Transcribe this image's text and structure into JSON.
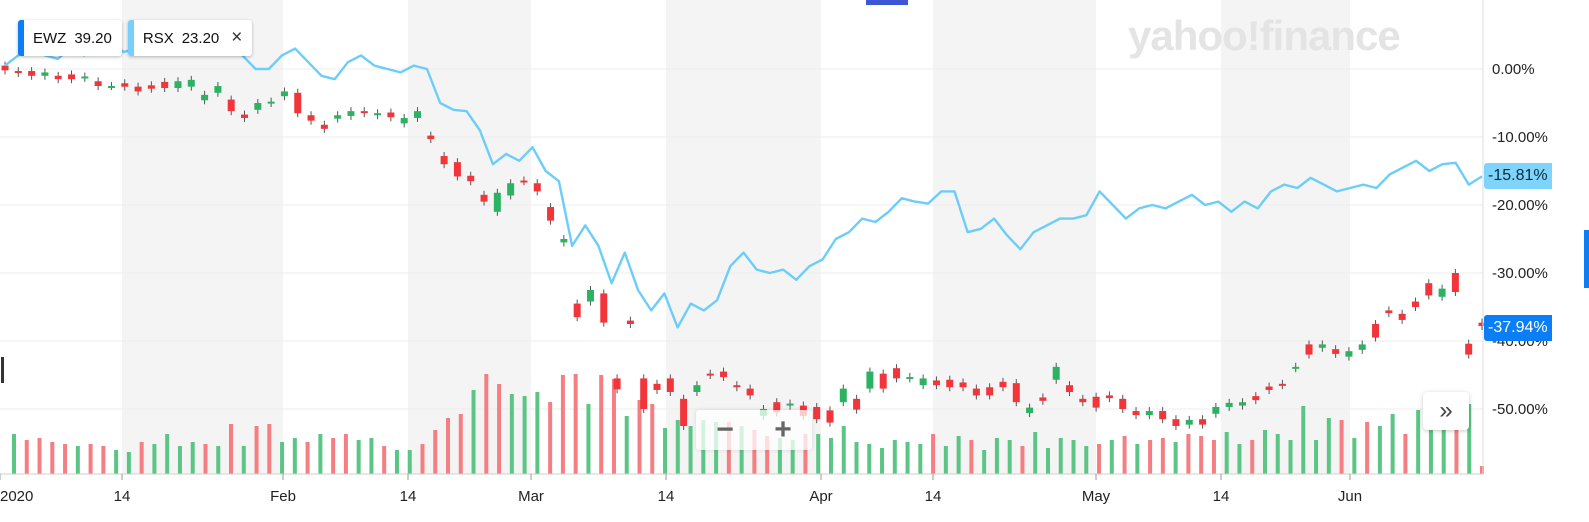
{
  "legend": [
    {
      "symbol": "EWZ",
      "value": "39.20",
      "color": "#0b7df5"
    },
    {
      "symbol": "RSX",
      "value": "23.20",
      "color": "#76d0fb",
      "close": "×"
    }
  ],
  "logo": "yahoo!finance",
  "badges": {
    "rsx": "-15.81%",
    "ewz": "-37.94%"
  },
  "zoom": {
    "minus": "−",
    "plus": "+"
  },
  "expand": "»",
  "chart_data": {
    "type": "candlestick+line",
    "x_ticks": [
      "2020",
      "14",
      "Feb",
      "14",
      "Mar",
      "14",
      "Apr",
      "14",
      "May",
      "14",
      "Jun"
    ],
    "y_ticks": [
      "0.00%",
      "-10.00%",
      "-20.00%",
      "-30.00%",
      "-40.00%",
      "-50.00%"
    ],
    "ylim": [
      -58,
      8
    ],
    "colors": {
      "up": "#2bb363",
      "down": "#f2353b",
      "volume_up": "#5ac584",
      "volume_down": "#f47e82",
      "rsx_line": "#6ccdf9"
    },
    "rsx_line": [
      0.5,
      2,
      3.5,
      2,
      1.5,
      3,
      2,
      3,
      4,
      2.5,
      3,
      4,
      5,
      3.5,
      4.5,
      3,
      5,
      3,
      2,
      0,
      0,
      2,
      3,
      1,
      -1,
      -1.5,
      1,
      2,
      0.5,
      0,
      -0.5,
      0.5,
      0,
      -5,
      -6,
      -6.2,
      -9,
      -14,
      -12.5,
      -13.5,
      -11.5,
      -15,
      -16.5,
      -26,
      -23,
      -26,
      -31.5,
      -27,
      -32.5,
      -35.5,
      -33,
      -38,
      -34.5,
      -35.5,
      -34,
      -29,
      -27,
      -29.5,
      -30,
      -29.5,
      -31,
      -29,
      -28,
      -25,
      -24,
      -22,
      -22.5,
      -21,
      -19,
      -19.5,
      -19.8,
      -18,
      -18,
      -24,
      -23.5,
      -22,
      -24.5,
      -26.5,
      -24,
      -23,
      -22,
      -22,
      -21.5,
      -18,
      -20,
      -22,
      -20.5,
      -20,
      -20.5,
      -19.5,
      -18.5,
      -20,
      -19.5,
      -21,
      -19.5,
      -20.5,
      -18,
      -17,
      -17.5,
      -16,
      -17,
      -18,
      -17.5,
      -17,
      -17.5,
      -15.5,
      -14.5,
      -13.5,
      -15,
      -14,
      -13.8,
      -17,
      -15.8
    ],
    "ewz_candles": [
      [
        0.5,
        -0.2
      ],
      [
        -0.3,
        -0.6
      ],
      [
        -0.3,
        -1
      ],
      [
        -1,
        -0.5
      ],
      [
        -1,
        -1.5
      ],
      [
        -0.8,
        -1.5
      ],
      [
        -1.3,
        -1.1
      ],
      [
        -1.8,
        -2.5
      ],
      [
        -2.5,
        -2.5
      ],
      [
        -2.1,
        -2.6
      ],
      [
        -2.6,
        -3.3
      ],
      [
        -2.4,
        -2.9
      ],
      [
        -1.9,
        -2.8
      ],
      [
        -2.8,
        -1.8
      ],
      [
        -2.6,
        -1.6
      ],
      [
        -4.6,
        -3.8
      ],
      [
        -3.5,
        -2.5
      ],
      [
        -4.5,
        -6.2
      ],
      [
        -6.7,
        -7.2
      ],
      [
        -6,
        -5
      ],
      [
        -5,
        -4.8
      ],
      [
        -4,
        -3.3
      ],
      [
        -3.5,
        -6.5
      ],
      [
        -6.8,
        -7.6
      ],
      [
        -8.2,
        -8.8
      ],
      [
        -7.3,
        -6.8
      ],
      [
        -6.9,
        -6.2
      ],
      [
        -6.2,
        -6.5
      ],
      [
        -6.8,
        -6.5
      ],
      [
        -6.4,
        -7.1
      ],
      [
        -8,
        -7.2
      ],
      [
        -7.2,
        -6.2
      ],
      [
        -9.8,
        -10.3
      ],
      [
        -12.8,
        -14
      ],
      [
        -13.7,
        -15.8
      ],
      [
        -15.7,
        -16.5
      ],
      [
        -18.5,
        -19.5
      ],
      [
        -21,
        -18.2
      ],
      [
        -18.6,
        -16.8
      ],
      [
        -16.4,
        -16.5
      ],
      [
        -16.8,
        -18
      ],
      [
        -20.3,
        -22.3
      ],
      [
        -25.5,
        -25
      ],
      [
        -34.5,
        -36.5
      ],
      [
        -34.2,
        -32.5
      ],
      [
        -33,
        -37.3
      ],
      [
        -45.5,
        -47.1
      ],
      [
        -37,
        -37.5
      ],
      [
        -45.5,
        -50
      ],
      [
        -46.3,
        -47.2
      ],
      [
        -45.5,
        -47.5
      ],
      [
        -48.5,
        -52.5
      ],
      [
        -47.5,
        -46.5
      ],
      [
        -44.8,
        -45
      ],
      [
        -44.5,
        -45.3
      ],
      [
        -46.5,
        -46.8
      ],
      [
        -47,
        -48
      ],
      [
        -51,
        -50
      ],
      [
        -49,
        -50.5
      ],
      [
        -49.5,
        -49.2
      ],
      [
        -49.5,
        -51
      ],
      [
        -49.7,
        -51.5
      ],
      [
        -50.2,
        -52
      ],
      [
        -49,
        -47
      ],
      [
        -48.5,
        -50.1
      ],
      [
        -47,
        -44.5
      ],
      [
        -44.8,
        -47
      ],
      [
        -44,
        -45.5
      ],
      [
        -45.5,
        -45.3
      ],
      [
        -46.5,
        -45.5
      ],
      [
        -45.8,
        -46.5
      ],
      [
        -45.7,
        -46.8
      ],
      [
        -46.1,
        -46.8
      ],
      [
        -47,
        -48
      ],
      [
        -46.8,
        -48
      ],
      [
        -46,
        -46.8
      ],
      [
        -46.2,
        -49
      ],
      [
        -50.6,
        -49.8
      ],
      [
        -48.3,
        -48.8
      ],
      [
        -45.7,
        -43.8
      ],
      [
        -46.5,
        -47.5
      ],
      [
        -48.5,
        -49
      ],
      [
        -48.2,
        -49.8
      ],
      [
        -48,
        -48.4
      ],
      [
        -48.5,
        -50
      ],
      [
        -50.3,
        -50.9
      ],
      [
        -50.9,
        -50.3
      ],
      [
        -50.3,
        -51.5
      ],
      [
        -51.5,
        -52.5
      ],
      [
        -52.3,
        -51.6
      ],
      [
        -51.5,
        -52.3
      ],
      [
        -50.7,
        -49.7
      ],
      [
        -49.7,
        -49.1
      ],
      [
        -49.5,
        -49
      ],
      [
        -48.1,
        -48.7
      ],
      [
        -46.7,
        -47.2
      ],
      [
        -46.3,
        -46.5
      ],
      [
        -44,
        -43.8
      ],
      [
        -40.5,
        -42
      ],
      [
        -41,
        -40.5
      ],
      [
        -41.2,
        -41.9
      ],
      [
        -42.3,
        -41.5
      ],
      [
        -41.3,
        -40.5
      ],
      [
        -37.5,
        -39.5
      ],
      [
        -35.5,
        -35.9
      ],
      [
        -36,
        -36.9
      ],
      [
        -34.2,
        -35
      ],
      [
        -31.5,
        -33.3
      ],
      [
        -33.5,
        -32.3
      ],
      [
        -30,
        -32.8
      ],
      [
        -40.4,
        -42
      ],
      [
        -37.3,
        -37.8
      ]
    ],
    "volume": [
      [
        1,
        40
      ],
      [
        0,
        34
      ],
      [
        0,
        36
      ],
      [
        0,
        32
      ],
      [
        0,
        30
      ],
      [
        1,
        28
      ],
      [
        0,
        30
      ],
      [
        0,
        28
      ],
      [
        1,
        24
      ],
      [
        1,
        22
      ],
      [
        0,
        32
      ],
      [
        1,
        30
      ],
      [
        1,
        40
      ],
      [
        1,
        28
      ],
      [
        1,
        32
      ],
      [
        0,
        30
      ],
      [
        1,
        28
      ],
      [
        0,
        50
      ],
      [
        1,
        28
      ],
      [
        0,
        48
      ],
      [
        0,
        50
      ],
      [
        1,
        32
      ],
      [
        1,
        36
      ],
      [
        0,
        32
      ],
      [
        1,
        40
      ],
      [
        0,
        36
      ],
      [
        0,
        40
      ],
      [
        1,
        34
      ],
      [
        1,
        36
      ],
      [
        0,
        28
      ],
      [
        1,
        24
      ],
      [
        1,
        24
      ],
      [
        0,
        30
      ],
      [
        0,
        44
      ],
      [
        0,
        56
      ],
      [
        0,
        60
      ],
      [
        1,
        84
      ],
      [
        0,
        100
      ],
      [
        0,
        90
      ],
      [
        1,
        80
      ],
      [
        1,
        78
      ],
      [
        1,
        82
      ],
      [
        0,
        72
      ],
      [
        0,
        99
      ],
      [
        0,
        100
      ],
      [
        1,
        70
      ],
      [
        0,
        99
      ],
      [
        0,
        95
      ],
      [
        1,
        58
      ],
      [
        0,
        74
      ],
      [
        0,
        70
      ],
      [
        1,
        46
      ],
      [
        1,
        54
      ],
      [
        1,
        48
      ],
      [
        1,
        54
      ],
      [
        1,
        52
      ],
      [
        0,
        52
      ],
      [
        1,
        48
      ],
      [
        0,
        44
      ],
      [
        0,
        38
      ],
      [
        1,
        36
      ],
      [
        1,
        34
      ],
      [
        0,
        40
      ],
      [
        1,
        40
      ],
      [
        1,
        36
      ],
      [
        1,
        48
      ],
      [
        1,
        32
      ],
      [
        1,
        30
      ],
      [
        1,
        26
      ],
      [
        1,
        34
      ],
      [
        1,
        32
      ],
      [
        1,
        30
      ],
      [
        0,
        40
      ],
      [
        1,
        28
      ],
      [
        1,
        38
      ],
      [
        0,
        34
      ],
      [
        1,
        24
      ],
      [
        1,
        36
      ],
      [
        1,
        34
      ],
      [
        0,
        28
      ],
      [
        1,
        42
      ],
      [
        1,
        26
      ],
      [
        1,
        36
      ],
      [
        1,
        34
      ],
      [
        1,
        28
      ],
      [
        0,
        30
      ],
      [
        1,
        34
      ],
      [
        0,
        38
      ],
      [
        1,
        30
      ],
      [
        0,
        34
      ],
      [
        0,
        36
      ],
      [
        1,
        32
      ],
      [
        0,
        40
      ],
      [
        0,
        38
      ],
      [
        0,
        34
      ],
      [
        1,
        42
      ],
      [
        1,
        30
      ],
      [
        0,
        34
      ],
      [
        1,
        44
      ],
      [
        1,
        40
      ],
      [
        1,
        34
      ],
      [
        1,
        68
      ],
      [
        1,
        34
      ],
      [
        1,
        56
      ],
      [
        0,
        54
      ],
      [
        1,
        36
      ],
      [
        0,
        52
      ],
      [
        1,
        48
      ],
      [
        1,
        60
      ],
      [
        0,
        40
      ],
      [
        1,
        64
      ],
      [
        1,
        56
      ],
      [
        1,
        44
      ],
      [
        0,
        48
      ],
      [
        1,
        70
      ],
      [
        0,
        8
      ]
    ]
  }
}
